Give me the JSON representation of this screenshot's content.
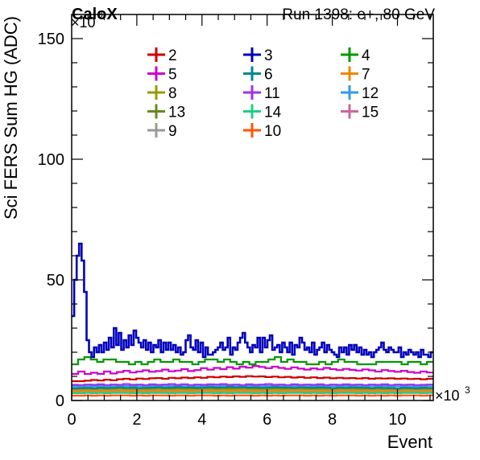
{
  "chart_data": {
    "type": "line",
    "header_left": "CaloX",
    "header_right": "Run 1398: e+, 80 GeV",
    "xlabel": "Event",
    "ylabel": "Sci FERS Sum HG (ADC)",
    "x_multiplier": "×10",
    "x_multiplier_exp": "3",
    "y_multiplier": "×10",
    "y_multiplier_exp": "3",
    "xlim": [
      0,
      11.1
    ],
    "ylim": [
      0,
      160
    ],
    "x_ticks": [
      0,
      2,
      4,
      6,
      8,
      10
    ],
    "y_ticks": [
      0,
      50,
      100,
      150
    ],
    "bin_width": 0.2,
    "series": [
      {
        "name": "2",
        "color": "#cc0000",
        "values": [
          8,
          8,
          8.2,
          8.5,
          8.3,
          8.6,
          8.4,
          8.8,
          9,
          8.7,
          9.1,
          8.9,
          9.2,
          9.3,
          9,
          9.4,
          9.2,
          9.5,
          9.3,
          9.6,
          9.4,
          9.8,
          9.6,
          9.9,
          9.7,
          10,
          9.8,
          10.1,
          9.9,
          10,
          9.7,
          9.9,
          9.6,
          9.8,
          9.5,
          9.7,
          9.4,
          9.6,
          9.3,
          9.5,
          9.2,
          9.4,
          9.2,
          9.3,
          9.1,
          9.3,
          9,
          9.2,
          9.1,
          9.2,
          9,
          9.1,
          8.9,
          9,
          8.8,
          9
        ]
      },
      {
        "name": "3",
        "color": "#0000bb",
        "values": [
          35,
          50,
          60,
          65,
          58,
          45,
          25,
          20,
          18,
          22,
          20,
          23,
          20,
          24,
          21,
          26,
          22,
          30,
          23,
          28,
          21,
          25,
          22,
          27,
          23,
          29,
          26,
          24,
          22,
          25,
          21,
          24,
          20,
          23,
          22,
          25,
          20,
          24,
          21,
          24,
          21,
          23,
          20,
          22,
          19,
          20,
          25,
          27,
          22,
          21,
          25,
          20,
          24,
          18,
          22,
          19,
          19,
          20,
          21,
          22,
          24,
          21,
          22,
          26,
          19,
          22,
          21,
          24,
          26,
          28,
          24,
          22,
          20,
          23,
          22,
          26,
          20,
          26,
          22,
          25,
          27,
          21,
          22,
          23,
          20,
          24,
          22,
          20,
          24,
          19,
          23,
          22,
          26,
          24,
          21,
          22,
          20,
          24,
          19,
          21,
          22,
          24,
          20,
          23,
          21,
          20,
          19,
          18,
          22,
          20,
          22,
          19,
          23,
          21,
          23,
          20,
          22,
          19,
          21,
          19,
          20,
          18,
          20,
          21,
          22,
          24,
          21,
          20,
          22,
          21,
          20,
          20,
          22,
          18,
          20,
          19,
          21,
          20,
          19,
          20,
          18,
          21,
          19,
          19,
          18,
          20
        ]
      },
      {
        "name": "4",
        "color": "#009900",
        "values": [
          15,
          17,
          18,
          17,
          16,
          17,
          17,
          16,
          16,
          15,
          16,
          15,
          16,
          17,
          16,
          16,
          17,
          16,
          16,
          15,
          16,
          17,
          17,
          16,
          17,
          16,
          15,
          16,
          15,
          16,
          16,
          17,
          18,
          16,
          17,
          16,
          16,
          15,
          15,
          16,
          15,
          16,
          17,
          16,
          16,
          15,
          15,
          15,
          16,
          16,
          16,
          16,
          15,
          16,
          16,
          15,
          16
        ]
      },
      {
        "name": "5",
        "color": "#cc00cc",
        "values": [
          11,
          12,
          11,
          11.5,
          11,
          12,
          11.2,
          11.8,
          12.3,
          11.6,
          12,
          12.5,
          11.9,
          12.2,
          12.8,
          12.1,
          12.4,
          13,
          12.2,
          12.6,
          13.4,
          12.8,
          13.5,
          13,
          13.8,
          13.2,
          14,
          13.6,
          14.3,
          13.9,
          13.4,
          14,
          13.5,
          13.1,
          13.7,
          13.2,
          12.8,
          13.3,
          12.9,
          13.5,
          13,
          12.6,
          13.1,
          12.7,
          12.4,
          12.9,
          12.5,
          12,
          12.6,
          12.2,
          11.9,
          12.3,
          11.8,
          11.5,
          12,
          11.6
        ]
      },
      {
        "name": "6",
        "color": "#008888",
        "values": [
          5,
          5.1,
          5.2,
          5,
          5.3,
          5.1,
          5.2,
          5.4,
          5.2,
          5.3,
          5.1,
          5.2,
          5.3,
          5.4,
          5.2,
          5.3,
          5.5,
          5.3,
          5.4,
          5.2,
          5.3,
          5.5,
          5.3,
          5.4,
          5.6,
          5.4,
          5.5,
          5.3,
          5.4,
          5.2,
          5.3,
          5.5,
          5.4,
          5.3,
          5.2,
          5.4,
          5.3,
          5.2,
          5.4,
          5.3,
          5.1,
          5.3,
          5.2,
          5.4,
          5.3,
          5.2,
          5.1,
          5.3,
          5.2,
          5.1,
          5,
          5.2,
          5.1,
          5,
          5.2,
          5.1
        ]
      },
      {
        "name": "7",
        "color": "#ee8800",
        "values": [
          4,
          4,
          4.1,
          4,
          4.1,
          4,
          4.1,
          4.2,
          4.1,
          4,
          4.1,
          4,
          4.1,
          4.2,
          4.1,
          4,
          4.1,
          4.1,
          4,
          4.1,
          4.2,
          4.1,
          4,
          4.1,
          4,
          4.1,
          4.2,
          4.1,
          4,
          4.1,
          4,
          4.1,
          4,
          4.1,
          4.2,
          4.1,
          4,
          4.1,
          4,
          4.1,
          4,
          4.1,
          4.2,
          4.1,
          4,
          4.1,
          4,
          4.1,
          4,
          4.1,
          4,
          4.1,
          4.2,
          4.1,
          4,
          4.1
        ]
      },
      {
        "name": "8",
        "color": "#999900",
        "values": [
          4.5,
          4.5,
          4.6,
          4.5,
          4.6,
          4.5,
          4.6,
          4.7,
          4.6,
          4.5,
          4.6,
          4.5,
          4.6,
          4.7,
          4.6,
          4.5,
          4.6,
          4.6,
          4.5,
          4.6,
          4.7,
          4.6,
          4.5,
          4.6,
          4.5,
          4.6,
          4.7,
          4.6,
          4.5,
          4.6,
          4.5,
          4.6,
          4.5,
          4.6,
          4.7,
          4.6,
          4.5,
          4.6,
          4.5,
          4.6,
          4.5,
          4.6,
          4.7,
          4.6,
          4.5,
          4.6,
          4.5,
          4.6,
          4.5,
          4.6,
          4.5,
          4.6,
          4.7,
          4.6,
          4.5,
          4.6
        ]
      },
      {
        "name": "11",
        "color": "#9933ee",
        "values": [
          6.5,
          6.4,
          6.6,
          6.5,
          6.7,
          6.4,
          6.6,
          6.5,
          6.8,
          6.5,
          6.6,
          6.4,
          6.7,
          6.5,
          6.6,
          6.8,
          6.5,
          6.7,
          6.4,
          6.6,
          6.5,
          6.7,
          6.6,
          6.8,
          6.5,
          6.6,
          6.4,
          6.7,
          6.5,
          6.6,
          6.8,
          6.5,
          6.6,
          6.4,
          6.7,
          6.5,
          6.6,
          6.5,
          6.7,
          6.4,
          6.6,
          6.5,
          6.7,
          6.5,
          6.6,
          6.4,
          6.6,
          6.5,
          6.7,
          6.4,
          6.6,
          6.5,
          6.6,
          6.4,
          6.5,
          6.6
        ]
      },
      {
        "name": "12",
        "color": "#3399ee",
        "values": [
          5.8,
          5.7,
          5.9,
          5.8,
          6,
          5.7,
          5.9,
          5.8,
          6,
          5.8,
          5.9,
          5.7,
          6,
          5.8,
          5.9,
          6,
          5.8,
          5.9,
          5.7,
          5.9,
          5.8,
          6,
          5.9,
          6.1,
          5.8,
          5.9,
          5.7,
          6,
          5.8,
          5.9,
          6,
          5.8,
          5.9,
          5.7,
          6,
          5.8,
          5.9,
          5.8,
          6,
          5.7,
          5.9,
          5.8,
          6,
          5.8,
          5.9,
          5.7,
          5.9,
          5.8,
          6,
          5.7,
          5.9,
          5.8,
          5.9,
          5.7,
          5.8,
          5.9
        ]
      },
      {
        "name": "13",
        "color": "#668822",
        "values": [
          5,
          5,
          5.1,
          5,
          5.1,
          5,
          5.1,
          5.2,
          5.1,
          5,
          5.1,
          5,
          5.1,
          5.2,
          5.1,
          5,
          5.1,
          5.1,
          5,
          5.1,
          5.2,
          5.1,
          5,
          5.1,
          5,
          5.1,
          5.2,
          5.1,
          5,
          5.1,
          5,
          5.1,
          5,
          5.1,
          5.2,
          5.1,
          5,
          5.1,
          5,
          5.1,
          5,
          5.1,
          5.2,
          5.1,
          5,
          5.1,
          5,
          5.1,
          5,
          5.1,
          5,
          5.1,
          5.2,
          5.1,
          5,
          5.1
        ]
      },
      {
        "name": "14",
        "color": "#22cc88",
        "values": [
          3,
          3,
          3.1,
          3,
          3.1,
          3,
          3.1,
          3.1,
          3.1,
          3,
          3.1,
          3,
          3.1,
          3.1,
          3.1,
          3,
          3.1,
          3.1,
          3,
          3.1,
          3.1,
          3.1,
          3,
          3.1,
          3,
          3.1,
          3.1,
          3.1,
          3,
          3.1,
          3,
          3.1,
          3,
          3.1,
          3.1,
          3.1,
          3,
          3.1,
          3,
          3.1,
          3,
          3.1,
          3.1,
          3.1,
          3,
          3.1,
          3,
          3.1,
          3,
          3.1,
          3,
          3.1,
          3.1,
          3.1,
          3,
          3.1
        ]
      },
      {
        "name": "15",
        "color": "#cc6699",
        "values": [
          4.2,
          4.2,
          4.3,
          4.2,
          4.3,
          4.2,
          4.3,
          4.3,
          4.3,
          4.2,
          4.3,
          4.2,
          4.3,
          4.3,
          4.3,
          4.2,
          4.3,
          4.3,
          4.2,
          4.3,
          4.3,
          4.3,
          4.2,
          4.3,
          4.2,
          4.3,
          4.3,
          4.3,
          4.2,
          4.3,
          4.2,
          4.3,
          4.2,
          4.3,
          4.3,
          4.3,
          4.2,
          4.3,
          4.2,
          4.3,
          4.2,
          4.3,
          4.3,
          4.3,
          4.2,
          4.3,
          4.2,
          4.3,
          4.2,
          4.3,
          4.2,
          4.3,
          4.3,
          4.3,
          4.2,
          4.3
        ]
      },
      {
        "name": "9",
        "color": "#999999",
        "values": [
          3.5,
          3.5,
          3.6,
          3.5,
          3.6,
          3.5,
          3.6,
          3.6,
          3.6,
          3.5,
          3.6,
          3.5,
          3.6,
          3.6,
          3.6,
          3.5,
          3.6,
          3.6,
          3.5,
          3.6,
          3.6,
          3.6,
          3.5,
          3.6,
          3.5,
          3.6,
          3.6,
          3.6,
          3.5,
          3.6,
          3.5,
          3.6,
          3.5,
          3.6,
          3.6,
          3.6,
          3.5,
          3.6,
          3.5,
          3.6,
          3.5,
          3.6,
          3.6,
          3.6,
          3.5,
          3.6,
          3.5,
          3.6,
          3.5,
          3.6,
          3.5,
          3.6,
          3.6,
          3.6,
          3.5,
          3.6
        ]
      },
      {
        "name": "10",
        "color": "#ff5500",
        "values": [
          2,
          2,
          2.1,
          2,
          2.1,
          2,
          2.1,
          2.1,
          2.1,
          2,
          2.1,
          2,
          2.1,
          2.1,
          2.1,
          2,
          2.1,
          2.1,
          2,
          2.1,
          2.1,
          2.1,
          2,
          2.1,
          2,
          2.1,
          2.1,
          2.1,
          2,
          2.1,
          2,
          2.1,
          2,
          2.1,
          2.1,
          2.1,
          2,
          2.1,
          2,
          2.1,
          2,
          2.1,
          2.1,
          2.1,
          2,
          2.1,
          2,
          2.1,
          2,
          2.1,
          2,
          2.1,
          2.1,
          2.1,
          2,
          2.1
        ]
      }
    ],
    "legend_order": [
      "2",
      "3",
      "4",
      "5",
      "6",
      "7",
      "8",
      "11",
      "12",
      "13",
      "14",
      "15",
      "9",
      "10"
    ],
    "legend_placement": "top",
    "grid": false
  }
}
